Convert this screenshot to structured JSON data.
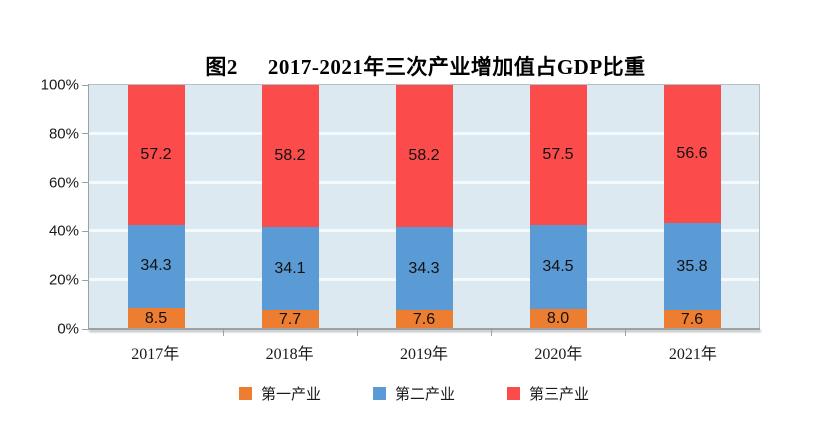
{
  "title": {
    "prefix": "图2",
    "text": "2017-2021年三次产业增加值占GDP比重"
  },
  "chart_data": {
    "type": "bar",
    "stacked": true,
    "percent_stacked": true,
    "title": "图2 2017-2021年三次产业增加值占GDP比重",
    "categories": [
      "2017年",
      "2018年",
      "2019年",
      "2020年",
      "2021年"
    ],
    "series": [
      {
        "name": "第一产业",
        "color": "#ED7D31",
        "values": [
          8.5,
          7.7,
          7.6,
          8.0,
          7.6
        ]
      },
      {
        "name": "第二产业",
        "color": "#5B9BD5",
        "values": [
          34.3,
          34.1,
          34.3,
          34.5,
          35.8
        ]
      },
      {
        "name": "第三产业",
        "color": "#FB4B4B",
        "values": [
          57.2,
          58.2,
          58.2,
          57.5,
          56.6
        ]
      }
    ],
    "y_ticks": [
      "0%",
      "20%",
      "40%",
      "60%",
      "80%",
      "100%"
    ],
    "ylim": [
      0,
      100
    ],
    "grid": true,
    "gridline_color": "#F4F9FB",
    "plot_bg": "#DCE9F0",
    "axis_color": "#9aa2a8",
    "legend_position": "bottom",
    "label_decimals": 1
  }
}
